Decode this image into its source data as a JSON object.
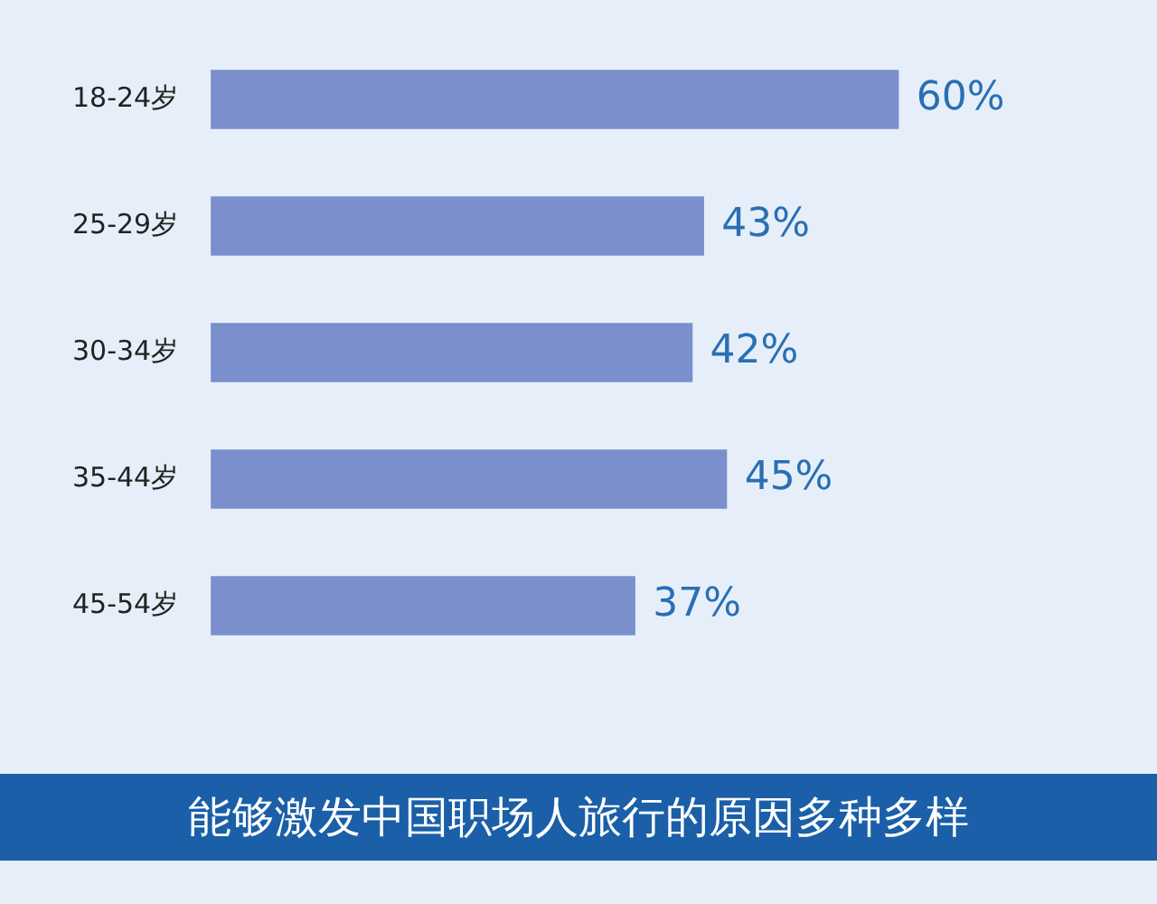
{
  "chart_data": {
    "type": "bar",
    "orientation": "horizontal",
    "title": "能够激发中国职场人旅行的原因多种多样",
    "categories": [
      "18-24岁",
      "25-29岁",
      "30-34岁",
      "35-44岁",
      "45-54岁"
    ],
    "values": [
      60,
      43,
      42,
      45,
      37
    ],
    "value_labels": [
      "60%",
      "43%",
      "42%",
      "45%",
      "37%"
    ],
    "color": "#7b8fcc",
    "legend": false
  }
}
